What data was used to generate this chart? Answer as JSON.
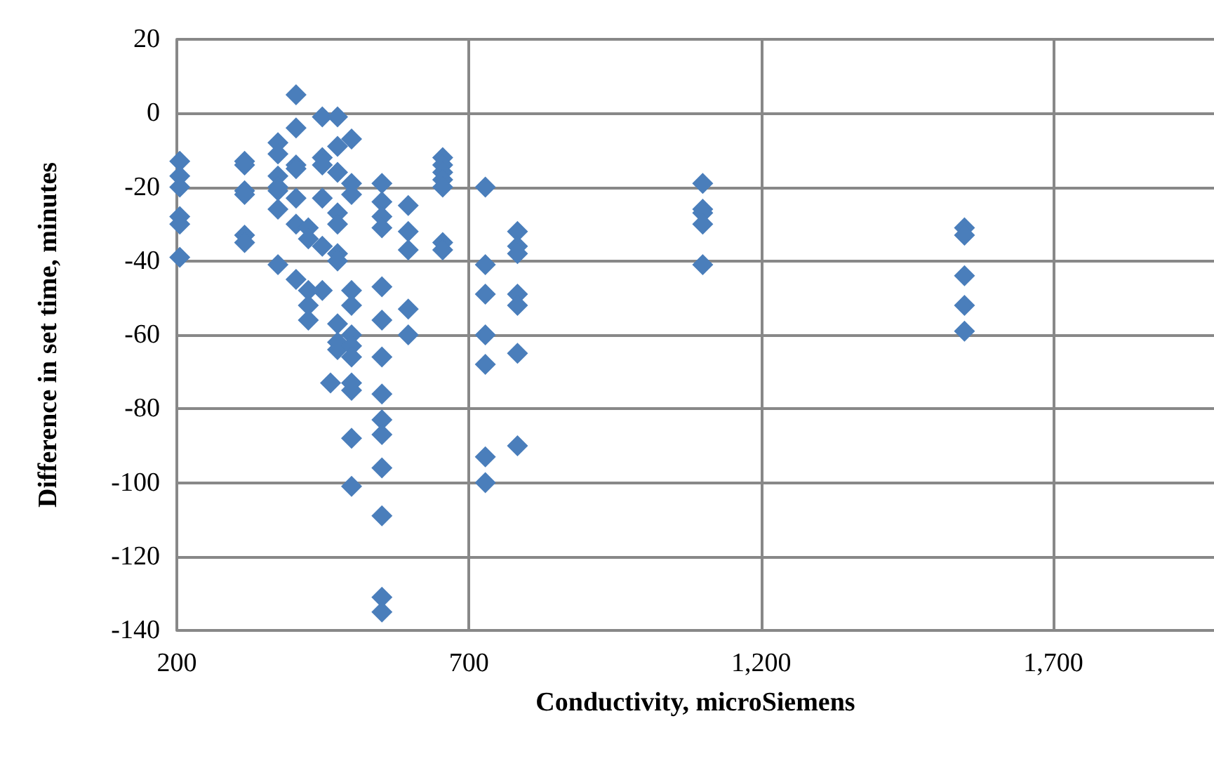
{
  "chart_data": {
    "type": "scatter",
    "xlabel": "Conductivity, microSiemens",
    "ylabel": "Difference in set time, minutes",
    "xlim": [
      200,
      1975
    ],
    "xticks": [
      {
        "value": 200,
        "label": "200"
      },
      {
        "value": 700,
        "label": "700"
      },
      {
        "value": 1200,
        "label": "1,200"
      },
      {
        "value": 1700,
        "label": "1,700"
      }
    ],
    "ylim": [
      -140,
      20
    ],
    "yticks": [
      -140,
      -120,
      -100,
      -80,
      -60,
      -40,
      -20,
      0,
      20
    ],
    "grid": true,
    "marker": "diamond",
    "series": [
      {
        "color": "#4a7ebb",
        "x": [
          205,
          205,
          205,
          205,
          205,
          205,
          316,
          316,
          316,
          316,
          316,
          316,
          373,
          373,
          373,
          373,
          373,
          373,
          373,
          404,
          404,
          404,
          404,
          404,
          404,
          404,
          425,
          425,
          425,
          425,
          425,
          449,
          449,
          449,
          449,
          449,
          449,
          463,
          475,
          475,
          475,
          475,
          475,
          475,
          475,
          475,
          475,
          475,
          499,
          499,
          499,
          499,
          499,
          499,
          499,
          499,
          499,
          499,
          499,
          499,
          551,
          551,
          551,
          551,
          551,
          551,
          551,
          551,
          551,
          551,
          551,
          551,
          551,
          551,
          596,
          596,
          596,
          596,
          596,
          655,
          655,
          655,
          655,
          655,
          655,
          655,
          728,
          728,
          728,
          728,
          728,
          728,
          728,
          783,
          783,
          783,
          783,
          783,
          783,
          783,
          1100,
          1100,
          1100,
          1100,
          1100,
          1548,
          1548,
          1548,
          1548,
          1548
        ],
        "values": [
          -13,
          -17,
          -20,
          -28,
          -30,
          -39,
          -13,
          -14,
          -21,
          -22,
          -33,
          -35,
          -8,
          -11,
          -17,
          -20,
          -21,
          -26,
          -41,
          5,
          -4,
          -14,
          -15,
          -23,
          -30,
          -45,
          -31,
          -34,
          -48,
          -52,
          -56,
          -1,
          -12,
          -14,
          -23,
          -36,
          -48,
          -73,
          -1,
          -9,
          -16,
          -27,
          -30,
          -38,
          -40,
          -57,
          -62,
          -64,
          -7,
          -19,
          -22,
          -48,
          -52,
          -60,
          -63,
          -66,
          -73,
          -75,
          -88,
          -101,
          -19,
          -24,
          -28,
          -31,
          -47,
          -56,
          -66,
          -76,
          -83,
          -87,
          -96,
          -109,
          -131,
          -135,
          -25,
          -32,
          -37,
          -53,
          -60,
          -12,
          -14,
          -16,
          -18,
          -20,
          -35,
          -37,
          -20,
          -41,
          -49,
          -60,
          -68,
          -93,
          -100,
          -32,
          -36,
          -38,
          -49,
          -52,
          -65,
          -90,
          -19,
          -26,
          -27,
          -30,
          -41,
          -31,
          -33,
          -44,
          -52,
          -59
        ]
      }
    ]
  }
}
